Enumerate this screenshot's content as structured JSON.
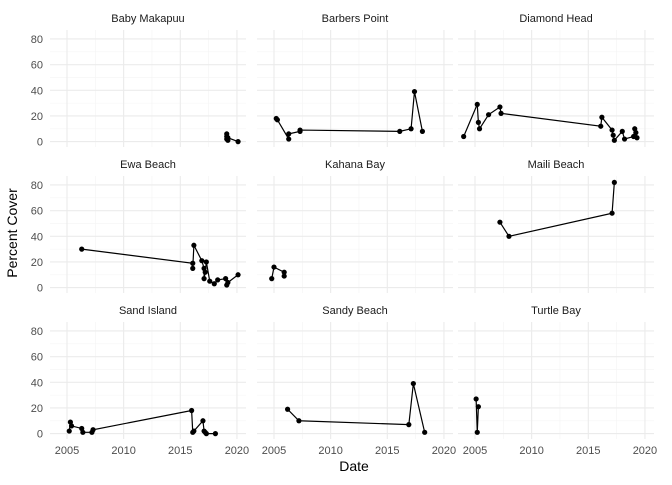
{
  "chart_data": {
    "type": "line",
    "layout": "facet-grid",
    "xlabel": "Date",
    "ylabel": "Percent Cover",
    "xlim": [
      2003.5,
      2020.8
    ],
    "ylim": [
      -4.2,
      87
    ],
    "x_ticks": [
      2005,
      2010,
      2015,
      2020
    ],
    "y_ticks": [
      0,
      20,
      40,
      60,
      80
    ],
    "grid": true,
    "theme": "minimal",
    "colors": {
      "line": "#000000",
      "point": "#000000",
      "grid": "#ebebeb"
    },
    "panels": [
      {
        "name": "Baby Makapuu",
        "x": [
          2019.1,
          2019.1,
          2019.1,
          2019.2,
          2019.2,
          2020.1
        ],
        "y": [
          6,
          4,
          2,
          1,
          3,
          0
        ]
      },
      {
        "name": "Barbers Point",
        "x": [
          2005.2,
          2005.3,
          2006.3,
          2006.3,
          2007.3,
          2007.3,
          2016.1,
          2017.1,
          2017.4,
          2018.1
        ],
        "y": [
          18,
          17,
          2,
          6,
          8,
          9,
          8,
          10,
          39,
          8
        ]
      },
      {
        "name": "Diamond Head",
        "x": [
          2004.0,
          2005.2,
          2005.3,
          2005.4,
          2006.2,
          2007.2,
          2007.3,
          2016.1,
          2016.2,
          2017.1,
          2017.2,
          2017.3,
          2018.0,
          2018.2,
          2019.0,
          2019.1,
          2019.2,
          2019.3
        ],
        "y": [
          4,
          29,
          15,
          10,
          21,
          27,
          22,
          12,
          19,
          9,
          5,
          1,
          8,
          2,
          4,
          10,
          7,
          3
        ]
      },
      {
        "name": "Ewa Beach",
        "x": [
          2006.3,
          2016.1,
          2016.1,
          2016.2,
          2016.9,
          2017.1,
          2017.1,
          2017.2,
          2017.3,
          2017.6,
          2018.0,
          2018.3,
          2019.0,
          2019.1,
          2019.2,
          2020.1
        ],
        "y": [
          30,
          19,
          15,
          33,
          21,
          15,
          7,
          12,
          20,
          5,
          3,
          6,
          7,
          2,
          4,
          10
        ]
      },
      {
        "name": "Kahana Bay",
        "x": [
          2004.8,
          2005.0,
          2005.9,
          2005.9
        ],
        "y": [
          7,
          16,
          12,
          9
        ]
      },
      {
        "name": "Maili Beach",
        "x": [
          2007.2,
          2008.0,
          2017.1,
          2017.3
        ],
        "y": [
          51,
          40,
          58,
          82
        ]
      },
      {
        "name": "Sand Island",
        "x": [
          2005.2,
          2005.3,
          2005.4,
          2006.3,
          2006.4,
          2007.2,
          2007.3,
          2016.0,
          2016.1,
          2016.2,
          2017.0,
          2017.1,
          2017.2,
          2017.3,
          2018.1
        ],
        "y": [
          2,
          9,
          6,
          4,
          1,
          1,
          3,
          18,
          1,
          2,
          10,
          2,
          1,
          0,
          0
        ]
      },
      {
        "name": "Sandy Beach",
        "x": [
          2006.2,
          2007.2,
          2016.9,
          2017.3,
          2018.3
        ],
        "y": [
          19,
          10,
          7,
          39,
          1
        ]
      },
      {
        "name": "Turtle Bay",
        "x": [
          2005.1,
          2005.2,
          2005.3
        ],
        "y": [
          27,
          1,
          21
        ]
      }
    ]
  }
}
